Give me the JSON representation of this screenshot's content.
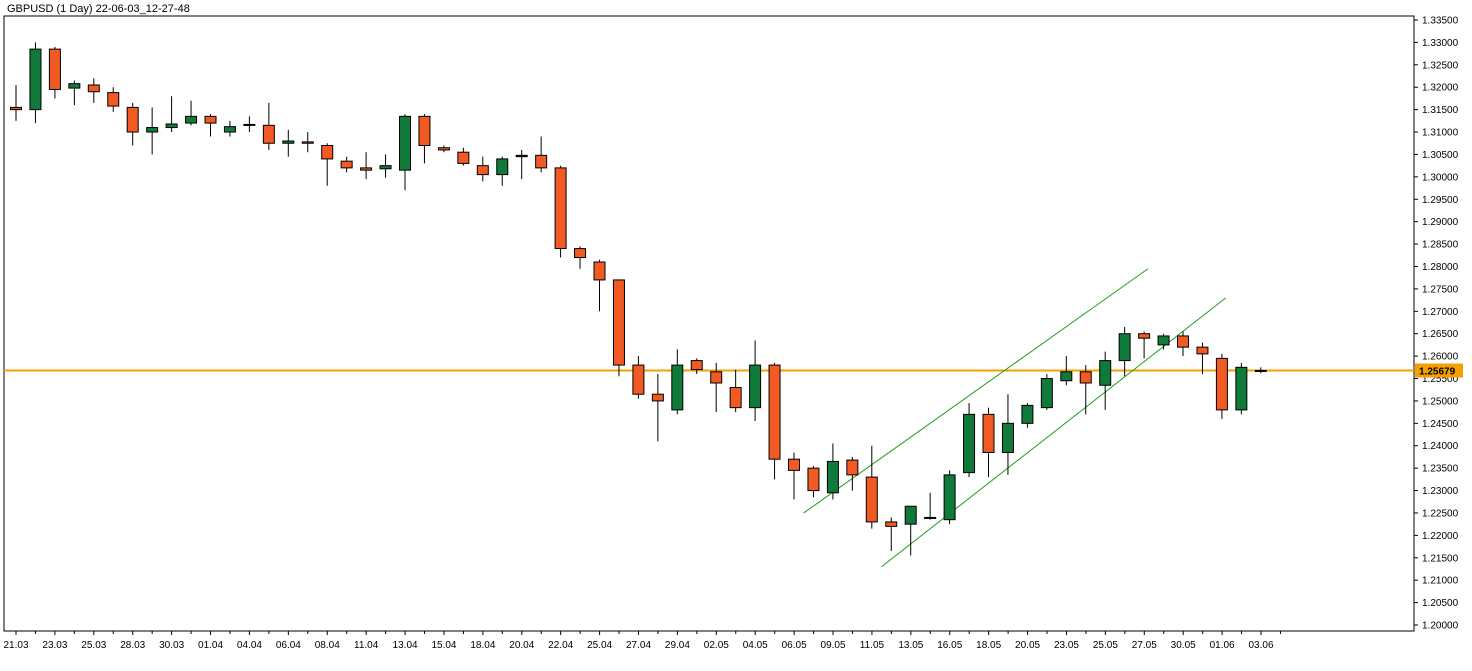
{
  "header": {
    "title": "GBPUSD (1 Day) 22-06-03_12-27-48"
  },
  "chart_data": {
    "type": "candlestick",
    "symbol": "GBPUSD",
    "timeframe": "1 Day",
    "ylim": [
      1.2,
      1.335
    ],
    "y_ticks": [
      "1.33500",
      "1.33000",
      "1.32500",
      "1.32000",
      "1.31500",
      "1.31000",
      "1.30500",
      "1.30000",
      "1.29500",
      "1.29000",
      "1.28500",
      "1.28000",
      "1.27500",
      "1.27000",
      "1.26500",
      "1.26000",
      "1.25500",
      "1.25000",
      "1.24500",
      "1.24000",
      "1.23500",
      "1.23000",
      "1.22500",
      "1.22000",
      "1.21500",
      "1.21000",
      "1.20500",
      "1.20000"
    ],
    "x_labels": [
      "21.03",
      "23.03",
      "25.03",
      "28.03",
      "30.03",
      "01.04",
      "04.04",
      "06.04",
      "08.04",
      "11.04",
      "13.04",
      "15.04",
      "18.04",
      "20.04",
      "22.04",
      "25.04",
      "27.04",
      "29.04",
      "02.05",
      "04.05",
      "06.05",
      "09.05",
      "11.05",
      "13.05",
      "16.05",
      "18.05",
      "20.05",
      "23.05",
      "25.05",
      "27.05",
      "30.05",
      "01.06",
      "03.06"
    ],
    "current_price": "1.25679",
    "current_price_value": 1.25679,
    "colors": {
      "bull": "#0f7a3a",
      "bear": "#f25a24",
      "price_line": "#f5a000",
      "channel": "#1aa01a",
      "axis": "#000000"
    },
    "candles": [
      {
        "o": 1.3155,
        "h": 1.3205,
        "l": 1.3125,
        "c": 1.315
      },
      {
        "o": 1.315,
        "h": 1.33,
        "l": 1.312,
        "c": 1.3285
      },
      {
        "o": 1.3285,
        "h": 1.329,
        "l": 1.3175,
        "c": 1.3195
      },
      {
        "o": 1.3198,
        "h": 1.3215,
        "l": 1.316,
        "c": 1.3208
      },
      {
        "o": 1.3205,
        "h": 1.322,
        "l": 1.3165,
        "c": 1.319
      },
      {
        "o": 1.3188,
        "h": 1.32,
        "l": 1.3145,
        "c": 1.3158
      },
      {
        "o": 1.3155,
        "h": 1.3165,
        "l": 1.307,
        "c": 1.31
      },
      {
        "o": 1.31,
        "h": 1.3155,
        "l": 1.305,
        "c": 1.311
      },
      {
        "o": 1.311,
        "h": 1.318,
        "l": 1.31,
        "c": 1.3118
      },
      {
        "o": 1.312,
        "h": 1.317,
        "l": 1.3115,
        "c": 1.3135
      },
      {
        "o": 1.3135,
        "h": 1.314,
        "l": 1.309,
        "c": 1.312
      },
      {
        "o": 1.31,
        "h": 1.3125,
        "l": 1.309,
        "c": 1.3112
      },
      {
        "o": 1.3117,
        "h": 1.3135,
        "l": 1.31,
        "c": 1.3115
      },
      {
        "o": 1.3115,
        "h": 1.3165,
        "l": 1.306,
        "c": 1.3075
      },
      {
        "o": 1.3075,
        "h": 1.3105,
        "l": 1.3045,
        "c": 1.308
      },
      {
        "o": 1.3078,
        "h": 1.31,
        "l": 1.3055,
        "c": 1.3075
      },
      {
        "o": 1.307,
        "h": 1.3075,
        "l": 1.298,
        "c": 1.304
      },
      {
        "o": 1.3035,
        "h": 1.3045,
        "l": 1.301,
        "c": 1.302
      },
      {
        "o": 1.302,
        "h": 1.3055,
        "l": 1.2995,
        "c": 1.3015
      },
      {
        "o": 1.3018,
        "h": 1.305,
        "l": 1.2998,
        "c": 1.3025
      },
      {
        "o": 1.3015,
        "h": 1.314,
        "l": 1.297,
        "c": 1.3135
      },
      {
        "o": 1.3135,
        "h": 1.314,
        "l": 1.303,
        "c": 1.307
      },
      {
        "o": 1.3065,
        "h": 1.307,
        "l": 1.3055,
        "c": 1.306
      },
      {
        "o": 1.3055,
        "h": 1.3065,
        "l": 1.3025,
        "c": 1.303
      },
      {
        "o": 1.3025,
        "h": 1.3045,
        "l": 1.299,
        "c": 1.3005
      },
      {
        "o": 1.3005,
        "h": 1.3045,
        "l": 1.298,
        "c": 1.304
      },
      {
        "o": 1.3045,
        "h": 1.306,
        "l": 1.2995,
        "c": 1.3048
      },
      {
        "o": 1.3048,
        "h": 1.309,
        "l": 1.301,
        "c": 1.302
      },
      {
        "o": 1.302,
        "h": 1.3025,
        "l": 1.282,
        "c": 1.284
      },
      {
        "o": 1.284,
        "h": 1.2845,
        "l": 1.2795,
        "c": 1.282
      },
      {
        "o": 1.281,
        "h": 1.2815,
        "l": 1.27,
        "c": 1.277
      },
      {
        "o": 1.277,
        "h": 1.277,
        "l": 1.2555,
        "c": 1.258
      },
      {
        "o": 1.258,
        "h": 1.26,
        "l": 1.2505,
        "c": 1.2515
      },
      {
        "o": 1.2515,
        "h": 1.256,
        "l": 1.241,
        "c": 1.25
      },
      {
        "o": 1.248,
        "h": 1.2615,
        "l": 1.247,
        "c": 1.258
      },
      {
        "o": 1.259,
        "h": 1.2595,
        "l": 1.256,
        "c": 1.257
      },
      {
        "o": 1.2565,
        "h": 1.2585,
        "l": 1.2475,
        "c": 1.254
      },
      {
        "o": 1.253,
        "h": 1.257,
        "l": 1.2475,
        "c": 1.2485
      },
      {
        "o": 1.2485,
        "h": 1.2635,
        "l": 1.2455,
        "c": 1.258
      },
      {
        "o": 1.258,
        "h": 1.2585,
        "l": 1.2325,
        "c": 1.237
      },
      {
        "o": 1.237,
        "h": 1.2385,
        "l": 1.228,
        "c": 1.2345
      },
      {
        "o": 1.235,
        "h": 1.2355,
        "l": 1.2285,
        "c": 1.23
      },
      {
        "o": 1.2295,
        "h": 1.2405,
        "l": 1.228,
        "c": 1.2365
      },
      {
        "o": 1.2368,
        "h": 1.2375,
        "l": 1.23,
        "c": 1.2335
      },
      {
        "o": 1.233,
        "h": 1.24,
        "l": 1.2215,
        "c": 1.223
      },
      {
        "o": 1.223,
        "h": 1.224,
        "l": 1.2165,
        "c": 1.222
      },
      {
        "o": 1.2225,
        "h": 1.2265,
        "l": 1.2155,
        "c": 1.2265
      },
      {
        "o": 1.2238,
        "h": 1.2295,
        "l": 1.2235,
        "c": 1.224
      },
      {
        "o": 1.2235,
        "h": 1.2345,
        "l": 1.2225,
        "c": 1.2335
      },
      {
        "o": 1.234,
        "h": 1.2495,
        "l": 1.233,
        "c": 1.247
      },
      {
        "o": 1.247,
        "h": 1.2485,
        "l": 1.233,
        "c": 1.2385
      },
      {
        "o": 1.2385,
        "h": 1.2515,
        "l": 1.2335,
        "c": 1.245
      },
      {
        "o": 1.245,
        "h": 1.2495,
        "l": 1.244,
        "c": 1.249
      },
      {
        "o": 1.2485,
        "h": 1.256,
        "l": 1.248,
        "c": 1.255
      },
      {
        "o": 1.2545,
        "h": 1.26,
        "l": 1.2535,
        "c": 1.2565
      },
      {
        "o": 1.2565,
        "h": 1.258,
        "l": 1.247,
        "c": 1.254
      },
      {
        "o": 1.2535,
        "h": 1.261,
        "l": 1.248,
        "c": 1.259
      },
      {
        "o": 1.259,
        "h": 1.2665,
        "l": 1.2555,
        "c": 1.265
      },
      {
        "o": 1.265,
        "h": 1.2655,
        "l": 1.2595,
        "c": 1.264
      },
      {
        "o": 1.2625,
        "h": 1.265,
        "l": 1.2615,
        "c": 1.2645
      },
      {
        "o": 1.2645,
        "h": 1.2655,
        "l": 1.26,
        "c": 1.262
      },
      {
        "o": 1.262,
        "h": 1.263,
        "l": 1.256,
        "c": 1.2605
      },
      {
        "o": 1.2595,
        "h": 1.2605,
        "l": 1.246,
        "c": 1.248
      },
      {
        "o": 1.248,
        "h": 1.2585,
        "l": 1.247,
        "c": 1.2575
      },
      {
        "o": 1.2568,
        "h": 1.2575,
        "l": 1.2562,
        "c": 1.2568
      }
    ],
    "channel_lines": [
      {
        "x1": 40.5,
        "y1": 1.225,
        "x2": 58.2,
        "y2": 1.2795
      },
      {
        "x1": 44.5,
        "y1": 1.213,
        "x2": 62.2,
        "y2": 1.273
      }
    ]
  }
}
